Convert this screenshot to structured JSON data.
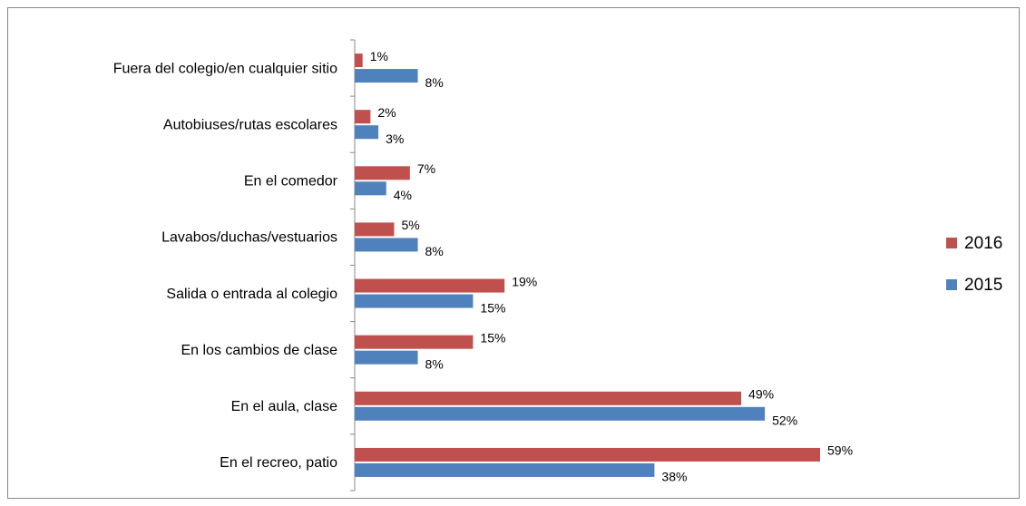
{
  "chart_data": {
    "type": "bar",
    "orientation": "horizontal",
    "categories": [
      "Fuera del colegio/en cualquier sitio",
      "Autobiuses/rutas escolares",
      "En el comedor",
      "Lavabos/duchas/vestuarios",
      "Salida o entrada al colegio",
      "En los cambios de clase",
      "En el aula, clase",
      "En el recreo, patio"
    ],
    "series": [
      {
        "name": "2016",
        "color": "#c0504d",
        "values": [
          1,
          2,
          7,
          5,
          19,
          15,
          49,
          59
        ],
        "value_labels": [
          "1%",
          "2%",
          "7%",
          "5%",
          "19%",
          "15%",
          "49%",
          "59%"
        ]
      },
      {
        "name": "2015",
        "color": "#4f81bd",
        "values": [
          8,
          3,
          4,
          8,
          15,
          8,
          52,
          38
        ],
        "value_labels": [
          "8%",
          "3%",
          "4%",
          "8%",
          "15%",
          "8%",
          "52%",
          "38%"
        ]
      }
    ],
    "legend": "right"
  }
}
